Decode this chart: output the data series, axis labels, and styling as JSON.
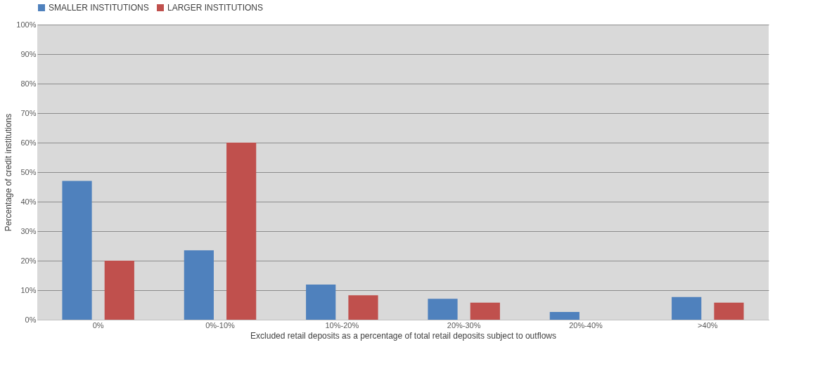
{
  "chart_data": {
    "type": "bar",
    "xlabel": "Excluded retail deposits as a percentage of total retail deposits subject to outflows",
    "ylabel": "Percentage of credit institutions",
    "categories": [
      "0%",
      "0%-10%",
      "10%-20%",
      "20%-30%",
      "20%-40%",
      ">40%"
    ],
    "series": [
      {
        "name": "SMALLER INSTITUTIONS",
        "color": "#4f81bd",
        "values": [
          47.0,
          23.5,
          11.9,
          7.1,
          2.6,
          7.7
        ]
      },
      {
        "name": "LARGER INSTITUTIONS",
        "color": "#c0504d",
        "values": [
          20.0,
          60.0,
          8.3,
          5.8,
          null,
          5.8
        ]
      }
    ],
    "ylim": [
      0,
      100
    ],
    "yticks": [
      {
        "value": 0,
        "label": "0%"
      },
      {
        "value": 10,
        "label": "10%"
      },
      {
        "value": 20,
        "label": "20%"
      },
      {
        "value": 30,
        "label": "30%"
      },
      {
        "value": 40,
        "label": "40%"
      },
      {
        "value": 50,
        "label": "50%"
      },
      {
        "value": 60,
        "label": "60%"
      },
      {
        "value": 70,
        "label": "70%"
      },
      {
        "value": 80,
        "label": "80%"
      },
      {
        "value": 90,
        "label": "90%"
      },
      {
        "value": 100,
        "label": "100%"
      }
    ],
    "grid": "y",
    "legend": "top"
  }
}
